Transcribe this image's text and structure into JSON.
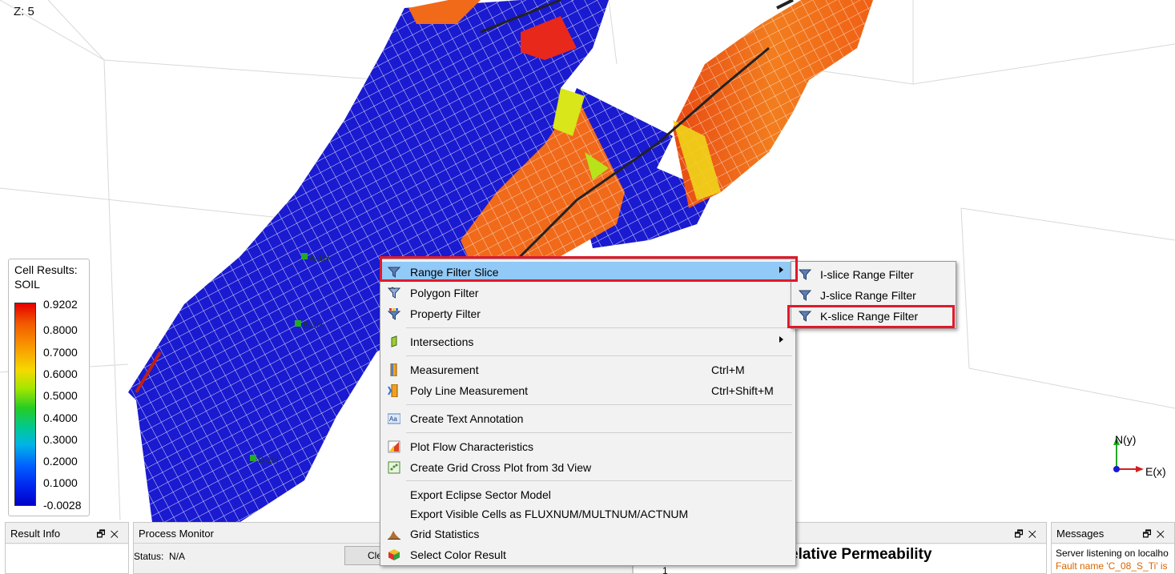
{
  "viewport": {
    "z_scale_label": "Z: 5",
    "well_labels": [
      "A-1H",
      "B-2H",
      "D-1H"
    ]
  },
  "legend": {
    "title_line1": "Cell Results:",
    "title_line2": "SOIL",
    "ticks": [
      "0.9202",
      "0.8000",
      "0.7000",
      "0.6000",
      "0.5000",
      "0.4000",
      "0.3000",
      "0.2000",
      "0.1000",
      "-0.0028"
    ]
  },
  "axes": {
    "y_label": "N(y)",
    "x_label": "E(x)"
  },
  "context_menu": {
    "items": [
      {
        "label": "Range Filter Slice",
        "shortcut": "",
        "icon": "funnel-icon",
        "submenu": true,
        "highlighted": true
      },
      {
        "label": "Polygon Filter",
        "shortcut": "",
        "icon": "polygon-filter-icon"
      },
      {
        "label": "Property Filter",
        "shortcut": "",
        "icon": "property-filter-icon"
      },
      {
        "label": "Intersections",
        "shortcut": "",
        "icon": "intersection-icon",
        "submenu": true
      },
      {
        "label": "Measurement",
        "shortcut": "Ctrl+M",
        "icon": "ruler-icon"
      },
      {
        "label": "Poly Line Measurement",
        "shortcut": "Ctrl+Shift+M",
        "icon": "polyline-ruler-icon"
      },
      {
        "label": "Create Text Annotation",
        "shortcut": "",
        "icon": "text-annotation-icon"
      },
      {
        "label": "Plot Flow Characteristics",
        "shortcut": "",
        "icon": "flow-plot-icon"
      },
      {
        "label": "Create Grid Cross Plot from 3d View",
        "shortcut": "",
        "icon": "cross-plot-icon"
      },
      {
        "label": "Export Eclipse Sector Model",
        "shortcut": "",
        "icon": ""
      },
      {
        "label": "Export Visible Cells as FLUXNUM/MULTNUM/ACTNUM",
        "shortcut": "",
        "icon": ""
      },
      {
        "label": "Grid Statistics",
        "shortcut": "",
        "icon": "histogram-icon"
      },
      {
        "label": "Select Color Result",
        "shortcut": "",
        "icon": "color-cube-icon"
      }
    ]
  },
  "submenu": {
    "items": [
      {
        "label": "I-slice Range Filter",
        "icon": "funnel-icon"
      },
      {
        "label": "J-slice Range Filter",
        "icon": "funnel-icon"
      },
      {
        "label": "K-slice Range Filter",
        "icon": "funnel-icon",
        "boxed": true
      }
    ]
  },
  "panels": {
    "result_info": {
      "title": "Result Info"
    },
    "process_monitor": {
      "title": "Process Monitor",
      "status_label": "Status:",
      "status_value": "N/A",
      "clear_label": "Cle"
    },
    "plot": {
      "title": "elative Permeability",
      "axis_tick": "1"
    },
    "messages": {
      "title": "Messages",
      "line1": "Server listening on localho",
      "line2": "Fault name 'C_08_S_Ti' is"
    },
    "float_glyph": "🗗",
    "close_glyph": "✕"
  },
  "colors": {
    "highlight": "#91c9f7",
    "annotation_red": "#e0192b",
    "reservoir_blue": "#1a1ad0",
    "reservoir_orange": "#f06a1a"
  }
}
